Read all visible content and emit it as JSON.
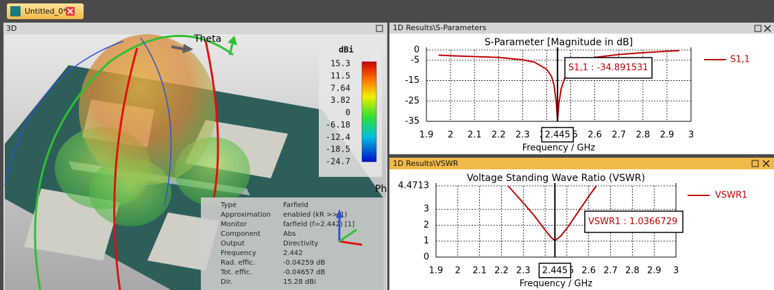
{
  "tab": {
    "title": "Untitled_0*"
  },
  "view_3d": {
    "title": "3D",
    "labels": [
      "Theta",
      "Ph"
    ],
    "colorbar": {
      "unit": "dBi",
      "ticks": [
        15.3,
        11.5,
        7.64,
        3.82,
        0,
        -6.18,
        -12.4,
        -18.5,
        -24.7
      ]
    },
    "info": {
      "rows": [
        [
          "Type",
          "Farfield"
        ],
        [
          "Approximation",
          "enabled (kR >> 1)"
        ],
        [
          "Monitor",
          "farfield (f=2.442) [1]"
        ],
        [
          "Component",
          "Abs"
        ],
        [
          "Output",
          "Directivity"
        ],
        [
          "Frequency",
          "2.442"
        ],
        [
          "Rad. effic.",
          "-0.04259 dB"
        ],
        [
          "Tot. effic.",
          "-0.04657 dB"
        ],
        [
          "Dir.",
          "15.28 dBi"
        ]
      ]
    }
  },
  "chart_data": [
    {
      "type": "line",
      "panel_title": "1D Results\\S-Parameters",
      "title": "S-Parameter [Magnitude in dB]",
      "x_label": "Frequency / GHz",
      "x": [
        1.95,
        2.0,
        2.1,
        2.2,
        2.3,
        2.35,
        2.4,
        2.42,
        2.43,
        2.44,
        2.445,
        2.45,
        2.46,
        2.48,
        2.5,
        2.55,
        2.6,
        2.7,
        2.8,
        2.9,
        2.95
      ],
      "series": [
        {
          "name": "S1,1",
          "color": "#c00000",
          "values": [
            -2.5,
            -2.8,
            -3.2,
            -3.6,
            -4.8,
            -6.0,
            -9.5,
            -13,
            -17,
            -26,
            -34.9,
            -27,
            -19,
            -12,
            -8.5,
            -5.2,
            -3.6,
            -2.2,
            -1.3,
            -0.6,
            -0.3
          ]
        }
      ],
      "xlim": [
        1.9,
        3
      ],
      "xticks": [
        1.9,
        2,
        2.1,
        2.2,
        2.3,
        2.4,
        2.5,
        2.6,
        2.7,
        2.8,
        2.9,
        3
      ],
      "ylim": [
        -35,
        0
      ],
      "yticks": [
        0,
        -5,
        -15,
        -25,
        -35
      ],
      "grid": true,
      "marker": 2.445,
      "annotation": "S1,1 : -34.891531"
    },
    {
      "type": "line",
      "panel_title": "1D Results\\VSWR",
      "title": "Voltage Standing Wave Ratio (VSWR)",
      "x_label": "Frequency / GHz",
      "x": [
        2.23,
        2.3,
        2.35,
        2.4,
        2.43,
        2.445,
        2.47,
        2.5,
        2.55,
        2.6,
        2.635
      ],
      "series": [
        {
          "name": "VSWR1",
          "color": "#c00000",
          "values": [
            4.4713,
            3.4,
            2.6,
            1.7,
            1.2,
            1.037,
            1.3,
            1.8,
            2.8,
            3.8,
            4.4713
          ]
        }
      ],
      "xlim": [
        1.9,
        3
      ],
      "xticks": [
        1.9,
        2,
        2.1,
        2.2,
        2.3,
        2.4,
        2.5,
        2.6,
        2.7,
        2.8,
        2.9,
        3
      ],
      "ylim": [
        0,
        4.4713
      ],
      "yticks": [
        0,
        1,
        2,
        3,
        4.4713
      ],
      "grid": true,
      "marker": 2.445,
      "annotation": "VSWR1 : 1.0366729"
    }
  ]
}
